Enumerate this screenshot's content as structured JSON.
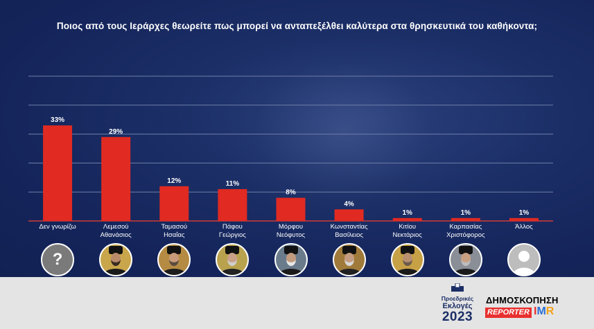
{
  "title": "Ποιος από τους Ιεράρχες θεωρείτε πως μπορεί να ανταπεξέλθει καλύτερα στα θρησκευτικά του καθήκοντα;",
  "colors": {
    "background": "#1b2e66",
    "bar": "#e02a22",
    "text": "#ffffff",
    "footer": "#e4e4e4"
  },
  "chart_data": {
    "type": "bar",
    "title": "Ποιος από τους Ιεράρχες θεωρείτε πως μπορεί να ανταπεξέλθει καλύτερα στα θρησκευτικά του καθήκοντα;",
    "categories": [
      [
        "Δεν γνωρίζω"
      ],
      [
        "Λεμεσού",
        "Αθανάσιος"
      ],
      [
        "Ταμασού",
        "Ησαΐας"
      ],
      [
        "Πάφου",
        "Γεώργιος"
      ],
      [
        "Μόρφου",
        "Νεόφυτος"
      ],
      [
        "Κωνσταντίας",
        "Βασίλειος"
      ],
      [
        "Κιτίου",
        "Νεκτάριος"
      ],
      [
        "Καρπασίας",
        "Χριστόφορος"
      ],
      [
        "Άλλος"
      ]
    ],
    "values": [
      33,
      29,
      12,
      11,
      8,
      4,
      1,
      1,
      1
    ],
    "value_labels": [
      "33%",
      "29%",
      "12%",
      "11%",
      "8%",
      "4%",
      "1%",
      "1%",
      "1%"
    ],
    "ylim": [
      0,
      50
    ],
    "grid": true,
    "xlabel": "",
    "ylabel": ""
  },
  "avatars": [
    "question-mark",
    "portrait",
    "portrait",
    "portrait",
    "portrait",
    "portrait",
    "portrait",
    "portrait",
    "blank-person"
  ],
  "avatar_question_glyph": "?",
  "footer": {
    "election_line1": "Προεδρικές",
    "election_line2": "Εκλογές",
    "election_year": "2023",
    "poll_label": "ΔΗΜΟΣΚΟΠΗΣΗ",
    "reporter_label": "REPORTER",
    "imr_label": [
      "I",
      "M",
      "R"
    ]
  }
}
